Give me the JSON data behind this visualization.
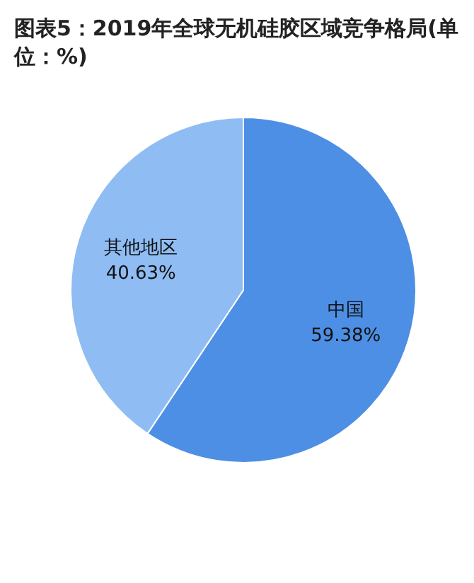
{
  "chart_data": {
    "type": "pie",
    "title": "图表5：2019年全球无机硅胶区域竞争格局(单位：%)",
    "categories": [
      "中国",
      "其他地区"
    ],
    "values": [
      59.38,
      40.63
    ],
    "colors": [
      "#4d8fe4",
      "#8fbcf3"
    ],
    "value_labels": [
      "59.38%",
      "40.63%"
    ],
    "legend": false
  }
}
